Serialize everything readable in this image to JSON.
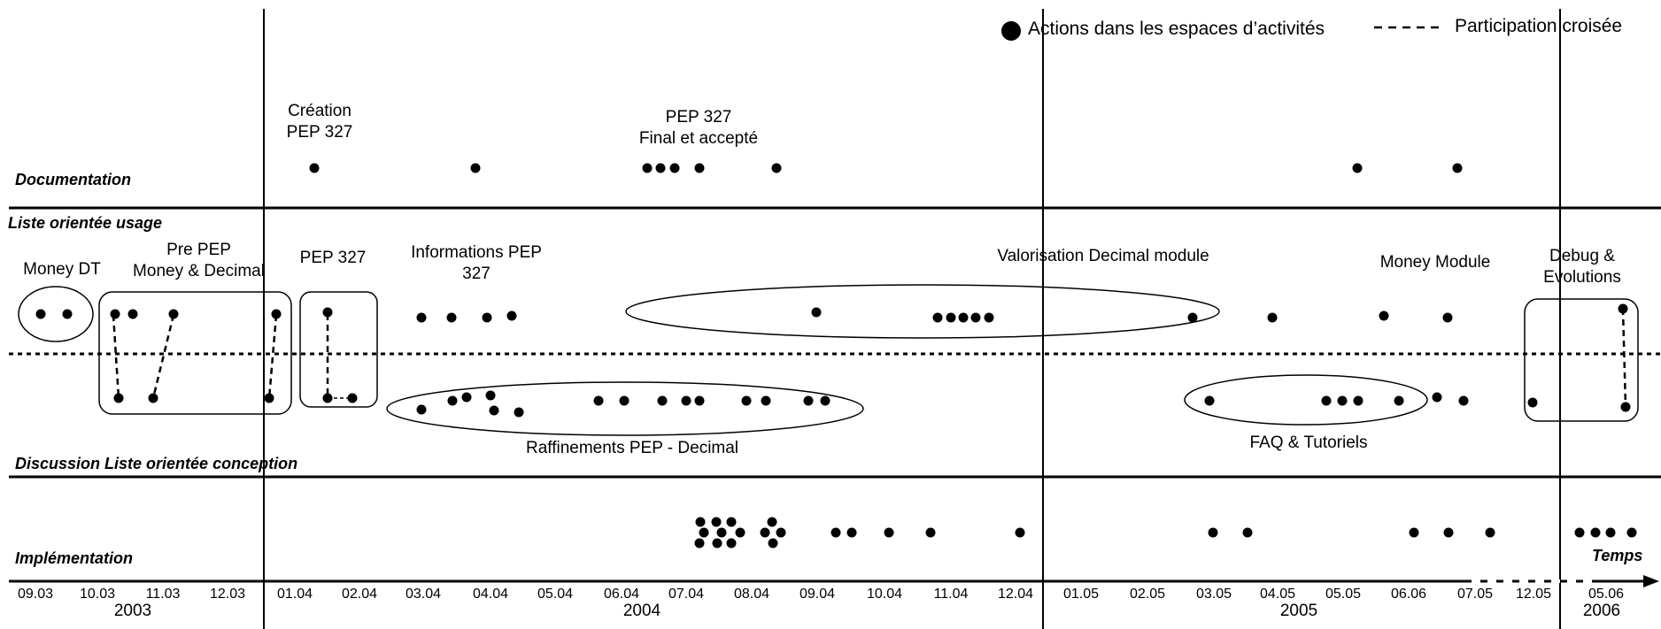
{
  "legend": {
    "actions_label": "Actions dans les espaces d’activités",
    "crossed_label": "Participation croisée"
  },
  "lanes": {
    "documentation": "Documentation",
    "usage": "Liste orientée usage",
    "conception": "Discussion Liste orientée conception",
    "implementation": "Implémentation"
  },
  "axis": {
    "label": "Temps",
    "ticks": [
      "09.03",
      "10.03",
      "11.03",
      "12.03",
      "01.04",
      "02.04",
      "03.04",
      "04.04",
      "05.04",
      "06.04",
      "07.04",
      "08.04",
      "09.04",
      "10.04",
      "11.04",
      "12.04",
      "01.05",
      "02.05",
      "03.05",
      "04.05",
      "05.05",
      "06.06",
      "07.05",
      "12.05",
      "05.06"
    ],
    "years": [
      "2003",
      "2004",
      "2005",
      "2006"
    ]
  },
  "annotations": {
    "creation": "Création\nPEP 327",
    "final": "PEP 327\nFinal et accepté",
    "money_dt": "Money DT",
    "pre_pep": "Pre PEP\nMoney & Decimal",
    "pep327": "PEP 327",
    "informations": "Informations PEP\n327",
    "valorisation": "Valorisation Decimal module",
    "money_module": "Money Module",
    "debug": "Debug &\nEvolutions",
    "raffinements": "Raffinements PEP - Decimal",
    "faq": "FAQ & Tutoriels"
  }
}
